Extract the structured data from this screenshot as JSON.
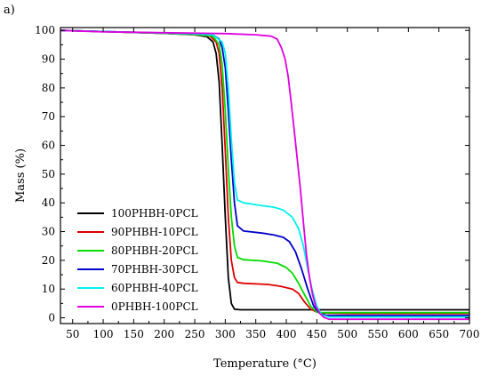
{
  "panel_label": "a)",
  "chart_data": {
    "type": "line",
    "title": "",
    "xlabel": "Temperature (°C)",
    "ylabel": "Mass (%)",
    "xlim": [
      30,
      700
    ],
    "ylim": [
      -2,
      101
    ],
    "xticks": [
      50,
      100,
      150,
      200,
      250,
      300,
      350,
      400,
      450,
      500,
      550,
      600,
      650,
      700
    ],
    "yticks": [
      0,
      10,
      20,
      30,
      40,
      50,
      60,
      70,
      80,
      90,
      100
    ],
    "grid": false,
    "legend_position": "lower-left",
    "series": [
      {
        "name": "100PHBH-0PCL",
        "color": "#000000",
        "points": [
          [
            30,
            100
          ],
          [
            100,
            99.6
          ],
          [
            200,
            99
          ],
          [
            250,
            98.5
          ],
          [
            270,
            97.8
          ],
          [
            280,
            96
          ],
          [
            285,
            92
          ],
          [
            290,
            82
          ],
          [
            295,
            60
          ],
          [
            300,
            35
          ],
          [
            305,
            14
          ],
          [
            310,
            5
          ],
          [
            315,
            3
          ],
          [
            325,
            2.8
          ],
          [
            400,
            2.8
          ],
          [
            500,
            2.8
          ],
          [
            600,
            2.8
          ],
          [
            700,
            2.8
          ]
        ]
      },
      {
        "name": "90PHBH-10PCL",
        "color": "#e00000",
        "points": [
          [
            30,
            100
          ],
          [
            100,
            99.6
          ],
          [
            200,
            99
          ],
          [
            250,
            98.5
          ],
          [
            275,
            98
          ],
          [
            285,
            96
          ],
          [
            290,
            92
          ],
          [
            295,
            80
          ],
          [
            300,
            58
          ],
          [
            305,
            35
          ],
          [
            310,
            20
          ],
          [
            315,
            14
          ],
          [
            320,
            12.3
          ],
          [
            330,
            12
          ],
          [
            370,
            11.6
          ],
          [
            390,
            11
          ],
          [
            410,
            10
          ],
          [
            420,
            8.5
          ],
          [
            430,
            5.5
          ],
          [
            440,
            3
          ],
          [
            450,
            2
          ],
          [
            460,
            1.6
          ],
          [
            500,
            1.5
          ],
          [
            600,
            1.5
          ],
          [
            700,
            1.5
          ]
        ]
      },
      {
        "name": "80PHBH-20PCL",
        "color": "#00dd00",
        "points": [
          [
            30,
            100
          ],
          [
            100,
            99.6
          ],
          [
            200,
            99
          ],
          [
            250,
            98.6
          ],
          [
            280,
            98
          ],
          [
            290,
            95
          ],
          [
            295,
            88
          ],
          [
            300,
            72
          ],
          [
            305,
            52
          ],
          [
            310,
            35
          ],
          [
            315,
            25
          ],
          [
            320,
            21
          ],
          [
            330,
            20.2
          ],
          [
            360,
            19.8
          ],
          [
            385,
            19
          ],
          [
            400,
            17.5
          ],
          [
            410,
            15.5
          ],
          [
            420,
            12
          ],
          [
            430,
            8
          ],
          [
            440,
            4
          ],
          [
            450,
            2
          ],
          [
            455,
            1.8
          ],
          [
            500,
            1.8
          ],
          [
            600,
            1.8
          ],
          [
            700,
            1.8
          ]
        ]
      },
      {
        "name": "70PHBH-30PCL",
        "color": "#0000cc",
        "points": [
          [
            30,
            100
          ],
          [
            100,
            99.6
          ],
          [
            200,
            99.1
          ],
          [
            250,
            98.8
          ],
          [
            280,
            98.4
          ],
          [
            290,
            97
          ],
          [
            295,
            94
          ],
          [
            300,
            87
          ],
          [
            305,
            72
          ],
          [
            310,
            55
          ],
          [
            315,
            40
          ],
          [
            320,
            32
          ],
          [
            330,
            30.2
          ],
          [
            360,
            29.5
          ],
          [
            380,
            28.8
          ],
          [
            395,
            28
          ],
          [
            405,
            26.5
          ],
          [
            415,
            23
          ],
          [
            425,
            17
          ],
          [
            435,
            10
          ],
          [
            445,
            4
          ],
          [
            455,
            1.5
          ],
          [
            465,
            0.8
          ],
          [
            500,
            0.8
          ],
          [
            600,
            0.8
          ],
          [
            700,
            0.8
          ]
        ]
      },
      {
        "name": "60PHBH-40PCL",
        "color": "#00f0f0",
        "points": [
          [
            30,
            100
          ],
          [
            100,
            99.6
          ],
          [
            200,
            99.1
          ],
          [
            250,
            98.8
          ],
          [
            280,
            98.4
          ],
          [
            295,
            96
          ],
          [
            300,
            92
          ],
          [
            305,
            80
          ],
          [
            310,
            62
          ],
          [
            315,
            47
          ],
          [
            320,
            41
          ],
          [
            330,
            40
          ],
          [
            360,
            39
          ],
          [
            380,
            38.5
          ],
          [
            395,
            37.5
          ],
          [
            410,
            35
          ],
          [
            420,
            31
          ],
          [
            428,
            25
          ],
          [
            435,
            17
          ],
          [
            442,
            10
          ],
          [
            450,
            4
          ],
          [
            458,
            1
          ],
          [
            470,
            0.3
          ],
          [
            500,
            0.3
          ],
          [
            600,
            0.3
          ],
          [
            700,
            0.3
          ]
        ]
      },
      {
        "name": "0PHBH-100PCL",
        "color": "#e000e0",
        "points": [
          [
            30,
            100
          ],
          [
            100,
            99.5
          ],
          [
            200,
            99.2
          ],
          [
            300,
            98.9
          ],
          [
            350,
            98.5
          ],
          [
            375,
            98
          ],
          [
            385,
            97
          ],
          [
            392,
            94
          ],
          [
            398,
            90
          ],
          [
            403,
            84
          ],
          [
            408,
            75
          ],
          [
            413,
            65
          ],
          [
            418,
            55
          ],
          [
            423,
            45
          ],
          [
            428,
            33
          ],
          [
            433,
            22
          ],
          [
            438,
            14
          ],
          [
            443,
            8
          ],
          [
            448,
            4
          ],
          [
            455,
            1.5
          ],
          [
            462,
            0.1
          ],
          [
            470,
            -0.5
          ],
          [
            500,
            -0.5
          ],
          [
            600,
            -0.5
          ],
          [
            700,
            -0.5
          ]
        ]
      }
    ]
  }
}
